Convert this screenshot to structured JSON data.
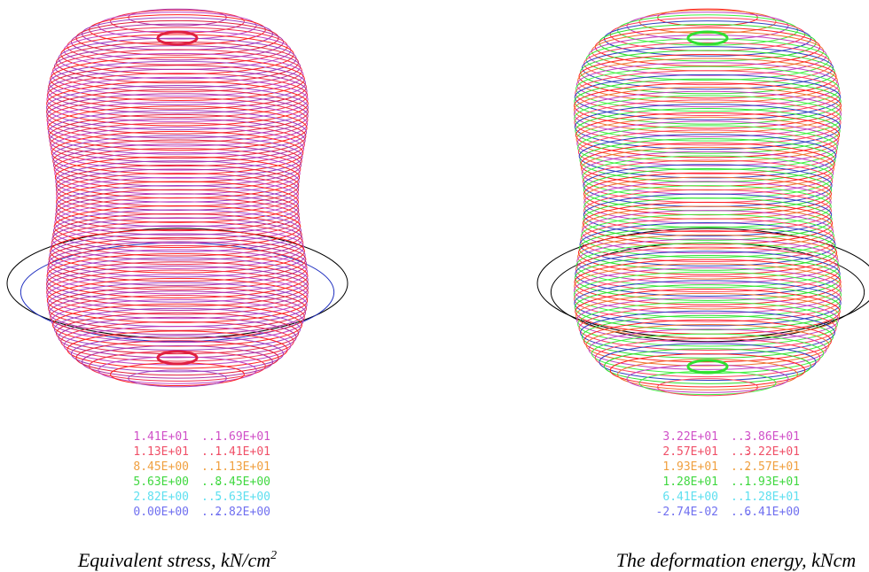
{
  "panels": [
    {
      "legend": [
        {
          "low": "1.41E+01",
          "high": "1.69E+01",
          "color": "#d050c8"
        },
        {
          "low": "1.13E+01",
          "high": "1.41E+01",
          "color": "#f05068"
        },
        {
          "low": "8.45E+00",
          "high": "1.13E+01",
          "color": "#f0a040"
        },
        {
          "low": "5.63E+00",
          "high": "8.45E+00",
          "color": "#40d840"
        },
        {
          "low": "2.82E+00",
          "high": "5.63E+00",
          "color": "#60e0f0"
        },
        {
          "low": "0.00E+00",
          "high": "2.82E+00",
          "color": "#7070f0"
        }
      ],
      "separator": "...",
      "caption": "Equivalent stress, kN/cm",
      "caption_sup": "2"
    },
    {
      "legend": [
        {
          "low": "3.22E+01",
          "high": "3.86E+01",
          "color": "#d050c8"
        },
        {
          "low": "2.57E+01",
          "high": "3.22E+01",
          "color": "#f05068"
        },
        {
          "low": "1.93E+01",
          "high": "2.57E+01",
          "color": "#f0a040"
        },
        {
          "low": "1.28E+01",
          "high": "1.93E+01",
          "color": "#40d840"
        },
        {
          "low": "6.41E+00",
          "high": "1.28E+01",
          "color": "#60e0f0"
        },
        {
          "low": "-2.74E-02",
          "high": "6.41E+00",
          "color": "#7070f0"
        }
      ],
      "separator": "...",
      "caption": "The deformation energy, kNcm"
    }
  ]
}
